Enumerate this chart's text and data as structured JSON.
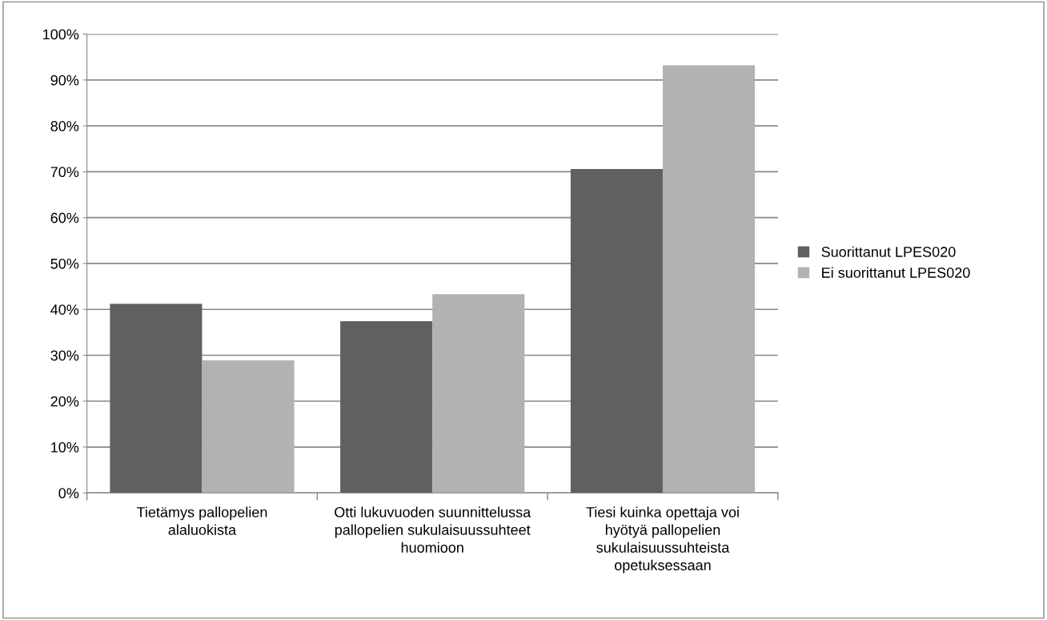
{
  "chart_data": {
    "type": "bar",
    "categories": [
      "Tietämys pallopelien alaluokista",
      "Otti lukuvuoden suunnittelussa pallopelien sukulaisuussuhteet huomioon",
      "Tiesi kuinka opettaja voi hyötyä pallopelien sukulaisuussuhteista opetuksessaan"
    ],
    "series": [
      {
        "name": "Suorittanut LPES020",
        "color": "#606060",
        "values": [
          41.2,
          37.4,
          70.6
        ]
      },
      {
        "name": "Ei suorittanut LPES020",
        "color": "#b2b2b2",
        "values": [
          28.9,
          43.3,
          93.2
        ]
      }
    ],
    "ylim": [
      0,
      100
    ],
    "yticks": [
      {
        "value": 0,
        "label": "0%"
      },
      {
        "value": 10,
        "label": "10%"
      },
      {
        "value": 20,
        "label": "20%"
      },
      {
        "value": 30,
        "label": "30%"
      },
      {
        "value": 40,
        "label": "40%"
      },
      {
        "value": 50,
        "label": "50%"
      },
      {
        "value": 60,
        "label": "60%"
      },
      {
        "value": 70,
        "label": "70%"
      },
      {
        "value": 80,
        "label": "80%"
      },
      {
        "value": 90,
        "label": "90%"
      },
      {
        "value": 100,
        "label": "100%"
      }
    ],
    "grid": "y",
    "legend": "right"
  }
}
